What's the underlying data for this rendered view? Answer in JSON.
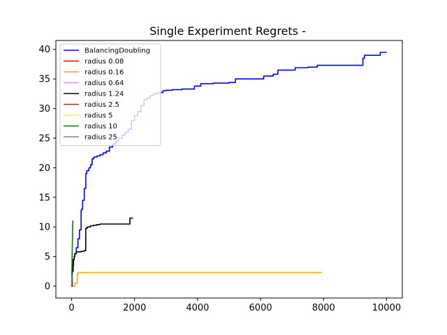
{
  "chart_data": {
    "type": "line",
    "title": "Single Experiment Regrets -",
    "xlabel": "",
    "ylabel": "",
    "xlim": [
      -500,
      10500
    ],
    "ylim": [
      -2,
      41.5
    ],
    "xticks": [
      0,
      2000,
      4000,
      6000,
      8000,
      10000
    ],
    "yticks": [
      0,
      5,
      10,
      15,
      20,
      25,
      30,
      35,
      40
    ],
    "grid": false,
    "legend_position": "upper-left",
    "series": [
      {
        "name": "BalancingDoubling",
        "color": "#0000ff",
        "step": true,
        "x": [
          0,
          20,
          40,
          60,
          80,
          100,
          150,
          200,
          250,
          300,
          320,
          350,
          400,
          450,
          480,
          500,
          550,
          600,
          650,
          700,
          750,
          800,
          900,
          1000,
          1100,
          1200,
          1300,
          1400,
          1500,
          1600,
          1700,
          1800,
          1900,
          2000,
          2100,
          2200,
          2300,
          2400,
          2500,
          2600,
          2700,
          2800,
          2900,
          3000,
          3200,
          3500,
          3900,
          4100,
          4500,
          5000,
          5200,
          5700,
          6100,
          6400,
          6550,
          7000,
          7100,
          7500,
          7800,
          8500,
          9200,
          9250,
          9300,
          9800,
          10000
        ],
        "y": [
          0.5,
          2.5,
          3.5,
          4.5,
          5,
          5.5,
          6.5,
          8.0,
          9.5,
          12.8,
          13,
          14.5,
          16.5,
          19.0,
          19.5,
          19.5,
          20.0,
          20.5,
          21.5,
          21.8,
          21.8,
          22.0,
          22.2,
          22.5,
          22.8,
          23.5,
          24.0,
          24.5,
          25.0,
          25.5,
          26.0,
          26.5,
          28.0,
          28.8,
          29.5,
          30.5,
          31.5,
          31.8,
          32.2,
          32.5,
          32.6,
          32.7,
          33.0,
          33.1,
          33.2,
          33.3,
          33.8,
          34.2,
          34.3,
          34.4,
          35.0,
          35.0,
          35.5,
          35.8,
          36.5,
          36.5,
          36.9,
          37.0,
          37.3,
          37.3,
          37.3,
          38.5,
          39.0,
          39.5,
          39.5
        ]
      },
      {
        "name": "radius 0.08",
        "color": "#ff0000",
        "x": [],
        "y": []
      },
      {
        "name": "radius 0.16",
        "color": "#ffa500",
        "step": true,
        "x": [
          0,
          100,
          150,
          180,
          200,
          7950
        ],
        "y": [
          0,
          0.5,
          0.5,
          2.0,
          2.3,
          2.3
        ]
      },
      {
        "name": "radius 0.64",
        "color": "#ee82ee",
        "x": [],
        "y": []
      },
      {
        "name": "radius 1.24",
        "color": "#000000",
        "step": true,
        "x": [
          0,
          20,
          50,
          80,
          100,
          150,
          200,
          300,
          400,
          450,
          500,
          600,
          700,
          800,
          900,
          1000,
          1800,
          1850,
          1950
        ],
        "y": [
          0,
          2.5,
          4.5,
          5.0,
          5.5,
          5.8,
          5.8,
          5.9,
          6.0,
          9.8,
          10.0,
          10.2,
          10.3,
          10.4,
          10.5,
          10.5,
          10.5,
          11.5,
          11.5
        ]
      },
      {
        "name": "radius 2.5",
        "color": "#a52a2a",
        "x": [],
        "y": []
      },
      {
        "name": "radius 5",
        "color": "#ffff00",
        "x": [],
        "y": []
      },
      {
        "name": "radius 10",
        "color": "#008000",
        "x": [
          0,
          10,
          20,
          30,
          40
        ],
        "y": [
          0,
          3.0,
          6.0,
          9.0,
          11.1
        ]
      },
      {
        "name": "radius 25",
        "color": "#808080",
        "x": [
          0,
          10,
          25
        ],
        "y": [
          0,
          1.0,
          2.0
        ]
      }
    ]
  }
}
